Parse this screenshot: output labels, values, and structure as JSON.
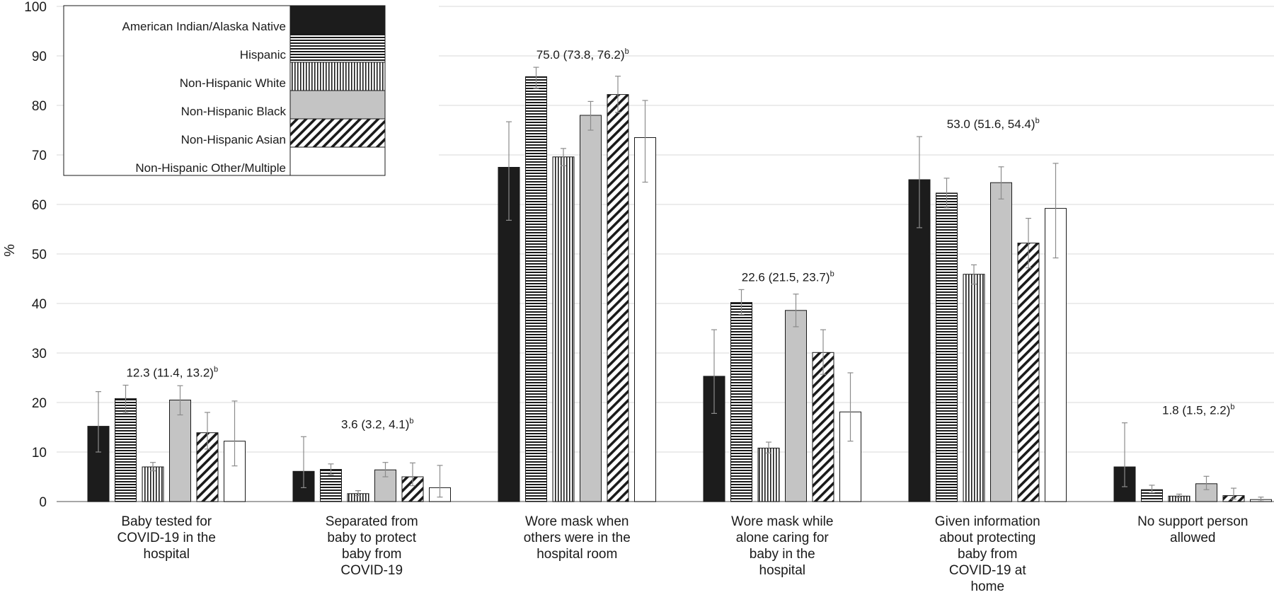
{
  "chart_data": {
    "type": "bar",
    "ylabel": "%",
    "ylim": [
      0,
      100
    ],
    "yticks": [
      "0",
      "10",
      "20",
      "30",
      "40",
      "50",
      "60",
      "70",
      "80",
      "90",
      "100"
    ],
    "grid": true,
    "legend_position": "top-left",
    "categories": [
      [
        "Baby tested for",
        "COVID-19 in the",
        "hospital"
      ],
      [
        "Separated from",
        "baby to protect",
        "baby from",
        "COVID-19"
      ],
      [
        "Wore mask when",
        "others were in the",
        "hospital room"
      ],
      [
        "Wore mask while",
        "alone caring for",
        "baby in the",
        "hospital"
      ],
      [
        "Given information",
        "about protecting",
        "baby from",
        "COVID-19 at",
        "home"
      ],
      [
        "No support person",
        "allowed"
      ]
    ],
    "annotations": [
      {
        "text": "12.3 (11.4, 13.2)",
        "sup": "b"
      },
      {
        "text": "3.6 (3.2, 4.1)",
        "sup": "b"
      },
      {
        "text": "75.0 (73.8, 76.2)",
        "sup": "b"
      },
      {
        "text": "22.6 (21.5, 23.7)",
        "sup": "b"
      },
      {
        "text": "53.0 (51.6, 54.4)",
        "sup": "b"
      },
      {
        "text": "1.8 (1.5, 2.2)",
        "sup": "b"
      }
    ],
    "series": [
      {
        "name": "American Indian/Alaska Native",
        "pattern": "solid-black",
        "values": [
          15.2,
          6.1,
          67.5,
          25.3,
          65.0,
          7.0
        ],
        "ci": [
          [
            10.0,
            22.2
          ],
          [
            2.8,
            13.1
          ],
          [
            56.8,
            76.7
          ],
          [
            17.8,
            34.7
          ],
          [
            55.3,
            73.7
          ],
          [
            3.0,
            15.9
          ]
        ]
      },
      {
        "name": "Hispanic",
        "pattern": "horizontal-lines",
        "values": [
          20.8,
          6.5,
          85.8,
          40.2,
          62.3,
          2.4
        ],
        "ci": [
          [
            17.9,
            23.5
          ],
          [
            5.4,
            7.6
          ],
          [
            83.4,
            87.7
          ],
          [
            37.8,
            42.8
          ],
          [
            59.3,
            65.3
          ],
          [
            1.8,
            3.3
          ]
        ]
      },
      {
        "name": "Non-Hispanic White",
        "pattern": "vertical-lines",
        "values": [
          7.0,
          1.6,
          69.6,
          10.8,
          45.9,
          1.1
        ],
        "ci": [
          [
            6.2,
            7.9
          ],
          [
            1.2,
            2.2
          ],
          [
            67.8,
            71.3
          ],
          [
            9.8,
            12.0
          ],
          [
            43.9,
            47.8
          ],
          [
            0.8,
            1.5
          ]
        ]
      },
      {
        "name": "Non-Hispanic Black",
        "pattern": "light-gray",
        "values": [
          20.5,
          6.4,
          78.0,
          38.6,
          64.4,
          3.6
        ],
        "ci": [
          [
            17.5,
            23.4
          ],
          [
            5.0,
            7.9
          ],
          [
            75.0,
            80.8
          ],
          [
            35.3,
            41.9
          ],
          [
            61.1,
            67.6
          ],
          [
            2.4,
            5.1
          ]
        ]
      },
      {
        "name": "Non-Hispanic Asian",
        "pattern": "diagonal-lines",
        "values": [
          13.9,
          5.0,
          82.2,
          30.1,
          52.2,
          1.2
        ],
        "ci": [
          [
            10.6,
            18.0
          ],
          [
            3.2,
            7.8
          ],
          [
            78.6,
            85.9
          ],
          [
            25.7,
            34.7
          ],
          [
            47.2,
            57.2
          ],
          [
            0.5,
            2.7
          ]
        ]
      },
      {
        "name": "Non-Hispanic Other/Multiple",
        "pattern": "white",
        "values": [
          12.2,
          2.8,
          73.5,
          18.1,
          59.2,
          0.4
        ],
        "ci": [
          [
            7.2,
            20.3
          ],
          [
            0.9,
            7.3
          ],
          [
            64.5,
            81.0
          ],
          [
            12.2,
            26.0
          ],
          [
            49.2,
            68.3
          ],
          [
            0.1,
            0.9
          ]
        ]
      }
    ]
  }
}
